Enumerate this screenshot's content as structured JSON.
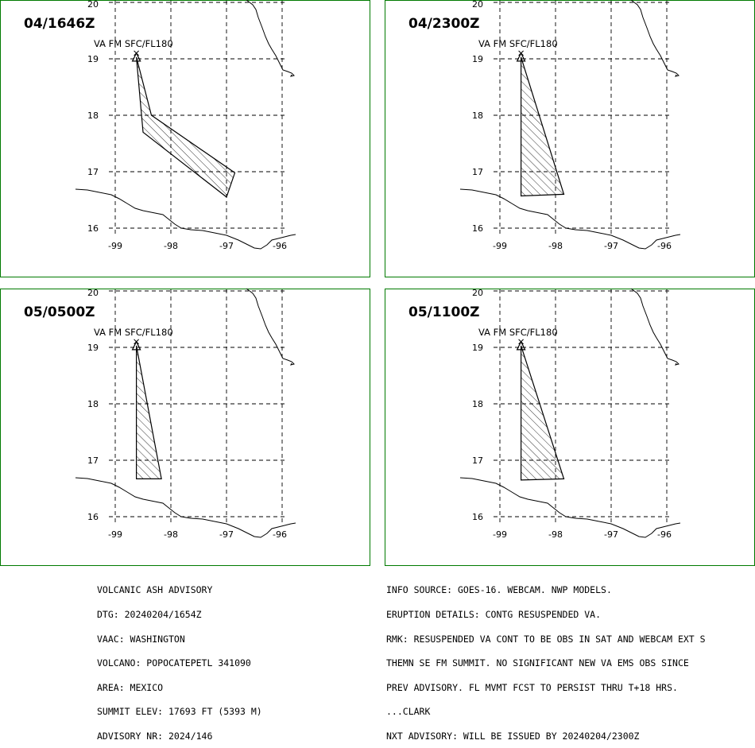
{
  "panels": [
    {
      "time_label": "04/1646Z",
      "layer_label": "VA FM SFC/FL180",
      "ash_polygon": [
        [
          -98.62,
          19.03
        ],
        [
          -98.35,
          18.0
        ],
        [
          -96.85,
          16.98
        ],
        [
          -97.0,
          16.55
        ],
        [
          -98.5,
          17.7
        ]
      ]
    },
    {
      "time_label": "04/2300Z",
      "layer_label": "VA FM SFC/FL180",
      "ash_polygon": [
        [
          -98.62,
          19.03
        ],
        [
          -97.85,
          16.6
        ],
        [
          -98.62,
          16.57
        ]
      ]
    },
    {
      "time_label": "05/0500Z",
      "layer_label": "VA FM SFC/FL180",
      "ash_polygon": [
        [
          -98.62,
          19.03
        ],
        [
          -98.17,
          16.67
        ],
        [
          -98.62,
          16.67
        ]
      ]
    },
    {
      "time_label": "05/1100Z",
      "layer_label": "VA FM SFC/FL180",
      "ash_polygon": [
        [
          -98.62,
          19.03
        ],
        [
          -97.85,
          16.67
        ],
        [
          -98.62,
          16.65
        ]
      ]
    }
  ],
  "map": {
    "lon_ticks": [
      "-99",
      "-98",
      "-97",
      "-96"
    ],
    "lat_ticks": [
      "20",
      "19",
      "18",
      "17",
      "16"
    ],
    "volcano": {
      "lon": -98.62,
      "lat": 19.03
    },
    "panel_border_color": "#007a00",
    "hatch_color": "#000000"
  },
  "advisory_left": [
    "VOLCANIC ASH ADVISORY",
    "DTG: 20240204/1654Z",
    "VAAC: WASHINGTON",
    "VOLCANO: POPOCATEPETL 341090",
    "AREA: MEXICO",
    "SUMMIT ELEV: 17693 FT (5393 M)",
    "ADVISORY NR: 2024/146"
  ],
  "advisory_right": [
    "INFO SOURCE: GOES-16. WEBCAM. NWP MODELS.",
    "ERUPTION DETAILS: CONTG RESUSPENDED VA.",
    "RMK: RESUSPENDED VA CONT TO BE OBS IN SAT AND WEBCAM EXT S",
    "THEMN SE FM SUMMIT. NO SIGNIFICANT NEW VA EMS OBS SINCE",
    "PREV ADVISORY. FL MVMT FCST TO PERSIST THRU T+18 HRS.",
    "...CLARK",
    "NXT ADVISORY: WILL BE ISSUED BY 20240204/2300Z"
  ]
}
